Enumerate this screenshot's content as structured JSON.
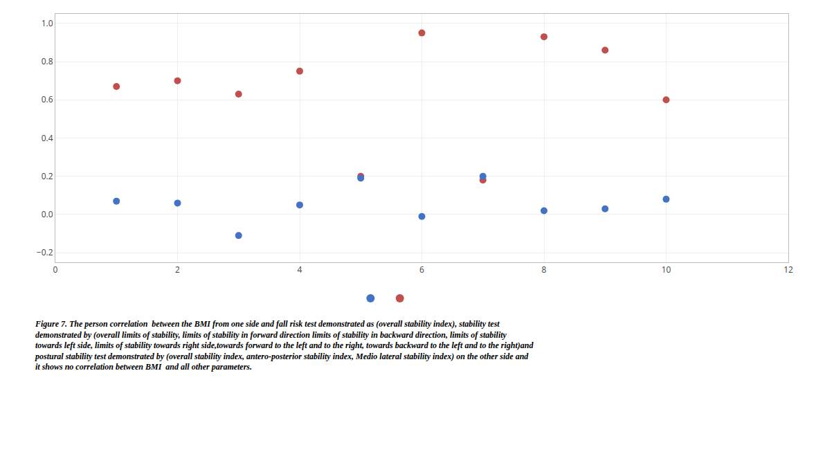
{
  "chart_data": {
    "type": "scatter",
    "x": [
      1,
      2,
      3,
      4,
      5,
      6,
      7,
      8,
      9,
      10
    ],
    "series": [
      {
        "color": "#c0504d",
        "values": [
          0.67,
          0.7,
          0.63,
          0.75,
          0.2,
          0.95,
          0.18,
          0.93,
          0.86,
          0.6
        ]
      },
      {
        "color": "#4472c4",
        "values": [
          0.07,
          0.06,
          -0.11,
          0.05,
          0.19,
          -0.01,
          0.2,
          0.02,
          0.03,
          0.08
        ]
      }
    ],
    "xlim": [
      0,
      12
    ],
    "ylim": [
      -0.25,
      1.05
    ],
    "xticks": [
      0,
      2,
      4,
      6,
      8,
      10,
      12
    ],
    "yticks": [
      {
        "value": -0.2,
        "label": "−0.2"
      },
      {
        "value": 0,
        "label": "0.0"
      },
      0.2,
      0.4,
      0.6,
      0.8,
      {
        "value": 1,
        "label": "1.0"
      }
    ],
    "grid": true,
    "annotations": [
      "Figure 7. The person correlation  between the BMI from one side and fall risk test demonstrated as (overall stability index), stability test\ndemonstrated by (overall limits of stability, limits of stability in forward direction limits of stability in backward direction, limits of stability\ntowards left side, limits of stability towards right side,towards forward to the left and to the right, towards backward to the left and to the right)and\npostural stability test demonstrated by (overall stability index, antero-posterior stability index, Medio lateral stability index) on the other side and\nit shows no correlation between BMI  and all other parameters."
    ]
  }
}
